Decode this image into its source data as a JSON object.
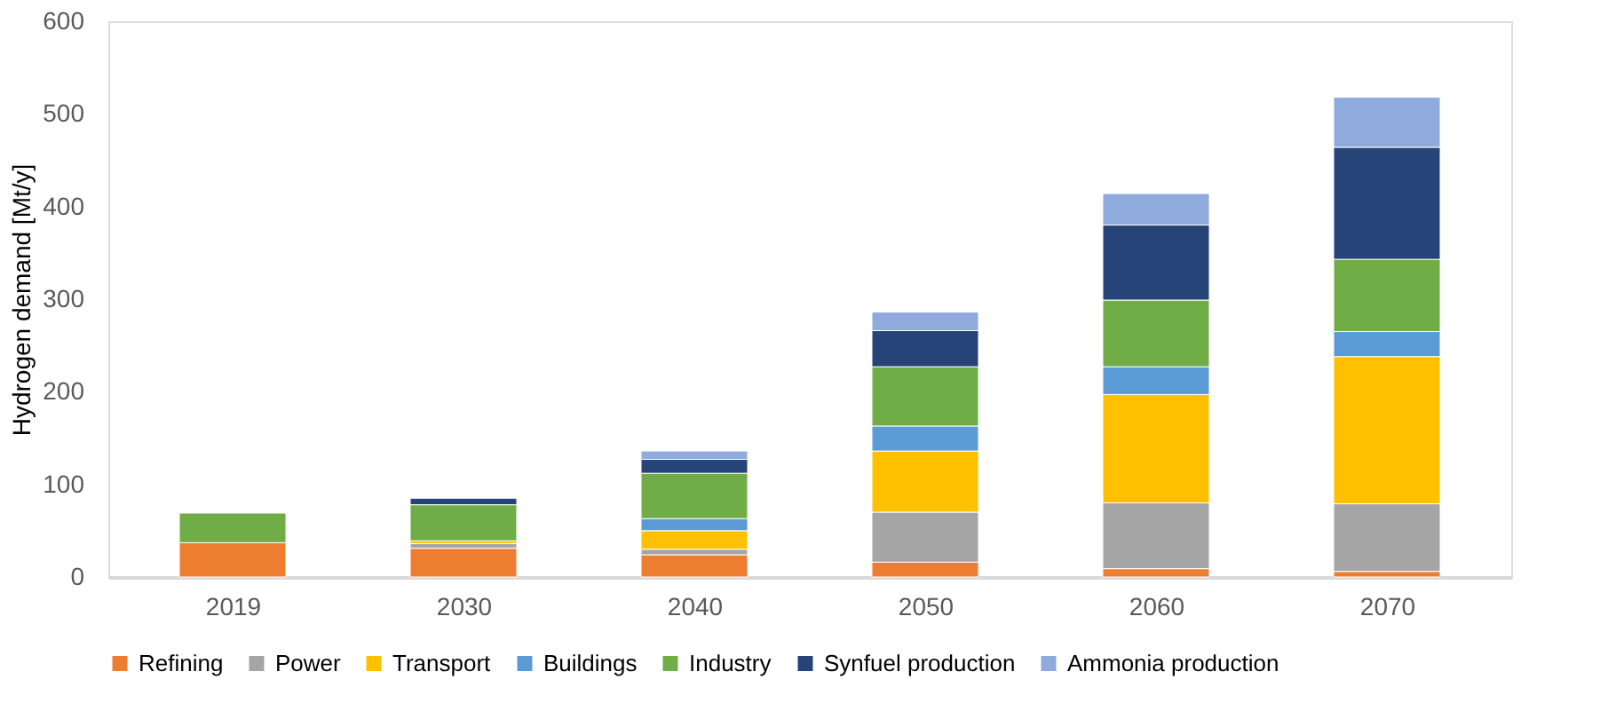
{
  "chart_data": {
    "type": "bar",
    "stacked": true,
    "ylabel": "Hydrogen demand [Mt/y]",
    "categories": [
      "2019",
      "2030",
      "2040",
      "2050",
      "2060",
      "2070"
    ],
    "series": [
      {
        "name": "Refining",
        "color": "#ed7d31",
        "values": [
          37,
          31,
          24,
          16,
          9,
          6
        ]
      },
      {
        "name": "Power",
        "color": "#a5a5a5",
        "values": [
          null,
          5,
          6,
          54,
          71,
          73
        ]
      },
      {
        "name": "Transport",
        "color": "#ffc000",
        "values": [
          null,
          3,
          20,
          66,
          117,
          159
        ]
      },
      {
        "name": "Buildings",
        "color": "#5b9bd5",
        "values": [
          null,
          null,
          13,
          27,
          30,
          27
        ]
      },
      {
        "name": "Industry",
        "color": "#70ad47",
        "values": [
          32,
          39,
          49,
          64,
          72,
          78
        ]
      },
      {
        "name": "Synfuel production",
        "color": "#264478",
        "values": [
          null,
          7,
          15,
          39,
          81,
          121
        ]
      },
      {
        "name": "Ammonia production",
        "color": "#8faadc",
        "values": [
          null,
          null,
          9,
          20,
          34,
          54
        ]
      }
    ],
    "ylim": [
      0,
      600
    ],
    "yticks": [
      0,
      100,
      200,
      300,
      400,
      500,
      600
    ],
    "grid": false,
    "legend": "bottom"
  }
}
